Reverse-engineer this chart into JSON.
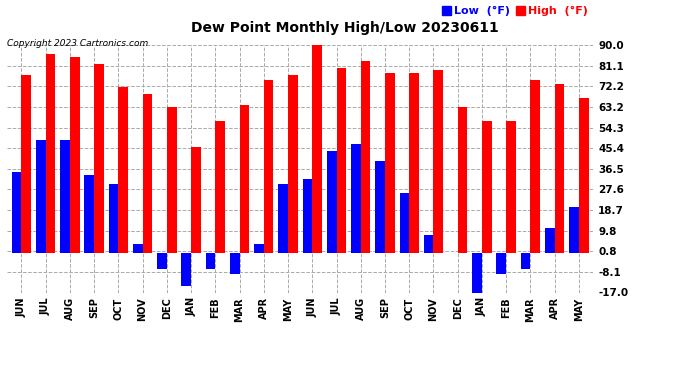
{
  "title": "Dew Point Monthly High/Low 20230611",
  "copyright": "Copyright 2023 Cartronics.com",
  "months": [
    "JUN",
    "JUL",
    "AUG",
    "SEP",
    "OCT",
    "NOV",
    "DEC",
    "JAN",
    "FEB",
    "MAR",
    "APR",
    "MAY",
    "JUN",
    "JUL",
    "AUG",
    "SEP",
    "OCT",
    "NOV",
    "DEC",
    "JAN",
    "FEB",
    "MAR",
    "APR",
    "MAY"
  ],
  "high": [
    77,
    86,
    85,
    82,
    72,
    69,
    63,
    46,
    57,
    64,
    75,
    77,
    91,
    80,
    83,
    78,
    78,
    79,
    63,
    57,
    57,
    75,
    73,
    67
  ],
  "low": [
    35,
    49,
    49,
    34,
    30,
    4,
    -7,
    -14,
    -7,
    -9,
    4,
    30,
    32,
    44,
    47,
    40,
    26,
    8,
    0,
    -17,
    -9,
    -7,
    11,
    20
  ],
  "ylim": [
    -17,
    90
  ],
  "yticks": [
    90.0,
    81.1,
    72.2,
    63.2,
    54.3,
    45.4,
    36.5,
    27.6,
    18.7,
    9.8,
    0.8,
    -8.1,
    -17.0
  ],
  "high_color": "#ff0000",
  "low_color": "#0000ff",
  "bar_width": 0.4,
  "bg_color": "#ffffff",
  "grid_color": "#aaaaaa",
  "title_fontsize": 10,
  "legend_label_low": "Low  (°F)",
  "legend_label_high": "High  (°F)"
}
